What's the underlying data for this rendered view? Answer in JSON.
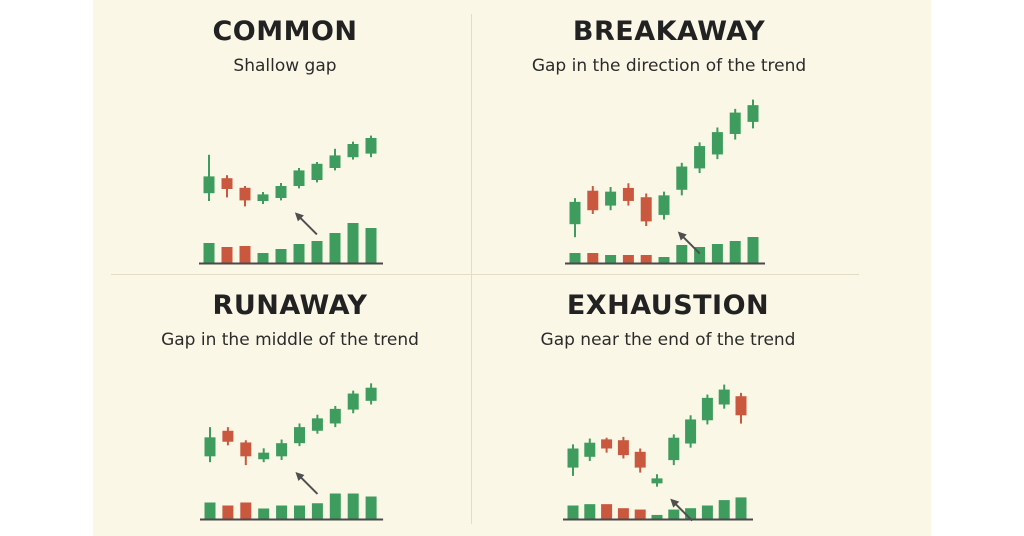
{
  "colors": {
    "up": "#3e9c5e",
    "down": "#c9583f",
    "baseline": "#4a4a4a",
    "arrow": "#4f4f4f",
    "background": "#fbf7e6"
  },
  "chart_data": [
    {
      "type": "candlestick",
      "title": "COMMON",
      "subtitle": "Shallow gap",
      "candles": [
        {
          "o": 176,
          "c": 148,
          "h": 212,
          "l": 135,
          "dir": "up"
        },
        {
          "o": 173,
          "c": 155,
          "h": 178,
          "l": 141,
          "dir": "down"
        },
        {
          "o": 157,
          "c": 136,
          "h": 160,
          "l": 126,
          "dir": "down"
        },
        {
          "o": 135,
          "c": 146,
          "h": 150,
          "l": 130,
          "dir": "up"
        },
        {
          "o": 140,
          "c": 160,
          "h": 165,
          "l": 136,
          "dir": "up"
        },
        {
          "o": 160,
          "c": 186,
          "h": 190,
          "l": 156,
          "dir": "up"
        },
        {
          "o": 170,
          "c": 197,
          "h": 200,
          "l": 166,
          "dir": "up"
        },
        {
          "o": 190,
          "c": 211,
          "h": 222,
          "l": 186,
          "dir": "up"
        },
        {
          "o": 208,
          "c": 230,
          "h": 234,
          "l": 204,
          "dir": "up"
        },
        {
          "o": 214,
          "c": 240,
          "h": 244,
          "l": 208,
          "dir": "up"
        }
      ],
      "volume": [
        {
          "v": 20,
          "dir": "up"
        },
        {
          "v": 16,
          "dir": "down"
        },
        {
          "v": 17,
          "dir": "down"
        },
        {
          "v": 10,
          "dir": "up"
        },
        {
          "v": 14,
          "dir": "up"
        },
        {
          "v": 19,
          "dir": "up"
        },
        {
          "v": 22,
          "dir": "up"
        },
        {
          "v": 30,
          "dir": "up"
        },
        {
          "v": 40,
          "dir": "up"
        },
        {
          "v": 35,
          "dir": "up"
        }
      ],
      "arrow_after_candle": 4
    },
    {
      "type": "candlestick",
      "title": "BREAKAWAY",
      "subtitle": "Gap in the direction of the trend",
      "candles": [
        {
          "o": 112,
          "c": 136,
          "h": 140,
          "l": 98,
          "dir": "up"
        },
        {
          "o": 148,
          "c": 127,
          "h": 153,
          "l": 123,
          "dir": "down"
        },
        {
          "o": 132,
          "c": 147,
          "h": 152,
          "l": 127,
          "dir": "up"
        },
        {
          "o": 151,
          "c": 137,
          "h": 156,
          "l": 132,
          "dir": "down"
        },
        {
          "o": 141,
          "c": 115,
          "h": 145,
          "l": 110,
          "dir": "down"
        },
        {
          "o": 122,
          "c": 143,
          "h": 147,
          "l": 117,
          "dir": "up"
        },
        {
          "o": 149,
          "c": 174,
          "h": 178,
          "l": 143,
          "dir": "up"
        },
        {
          "o": 172,
          "c": 196,
          "h": 200,
          "l": 167,
          "dir": "up"
        },
        {
          "o": 187,
          "c": 211,
          "h": 216,
          "l": 182,
          "dir": "up"
        },
        {
          "o": 209,
          "c": 232,
          "h": 236,
          "l": 203,
          "dir": "up"
        },
        {
          "o": 222,
          "c": 240,
          "h": 246,
          "l": 215,
          "dir": "up"
        }
      ],
      "volume": [
        {
          "v": 10,
          "dir": "up"
        },
        {
          "v": 10,
          "dir": "down"
        },
        {
          "v": 8,
          "dir": "up"
        },
        {
          "v": 8,
          "dir": "down"
        },
        {
          "v": 8,
          "dir": "down"
        },
        {
          "v": 6,
          "dir": "up"
        },
        {
          "v": 18,
          "dir": "up"
        },
        {
          "v": 16,
          "dir": "up"
        },
        {
          "v": 19,
          "dir": "up"
        },
        {
          "v": 22,
          "dir": "up"
        },
        {
          "v": 26,
          "dir": "up"
        }
      ],
      "arrow_after_candle": 5
    },
    {
      "type": "candlestick",
      "title": "RUNAWAY",
      "subtitle": "Gap in the middle of the trend",
      "candles": [
        {
          "o": 162,
          "c": 136,
          "h": 176,
          "l": 128,
          "dir": "up"
        },
        {
          "o": 171,
          "c": 156,
          "h": 176,
          "l": 151,
          "dir": "down"
        },
        {
          "o": 155,
          "c": 136,
          "h": 158,
          "l": 124,
          "dir": "down"
        },
        {
          "o": 141,
          "c": 132,
          "h": 147,
          "l": 128,
          "dir": "up"
        },
        {
          "o": 136,
          "c": 154,
          "h": 159,
          "l": 131,
          "dir": "up"
        },
        {
          "o": 154,
          "c": 176,
          "h": 181,
          "l": 150,
          "dir": "up"
        },
        {
          "o": 171,
          "c": 188,
          "h": 193,
          "l": 167,
          "dir": "up"
        },
        {
          "o": 181,
          "c": 201,
          "h": 205,
          "l": 176,
          "dir": "up"
        },
        {
          "o": 200,
          "c": 222,
          "h": 226,
          "l": 195,
          "dir": "up"
        },
        {
          "o": 212,
          "c": 230,
          "h": 236,
          "l": 207,
          "dir": "up"
        }
      ],
      "volume": [
        {
          "v": 22,
          "dir": "up"
        },
        {
          "v": 18,
          "dir": "down"
        },
        {
          "v": 22,
          "dir": "down"
        },
        {
          "v": 14,
          "dir": "up"
        },
        {
          "v": 18,
          "dir": "up"
        },
        {
          "v": 18,
          "dir": "up"
        },
        {
          "v": 21,
          "dir": "up"
        },
        {
          "v": 34,
          "dir": "up"
        },
        {
          "v": 34,
          "dir": "up"
        },
        {
          "v": 30,
          "dir": "up"
        }
      ],
      "arrow_after_candle": 4
    },
    {
      "type": "candlestick",
      "title": "EXHAUSTION",
      "subtitle": "Gap near the end of the trend",
      "candles": [
        {
          "o": 117,
          "c": 140,
          "h": 145,
          "l": 107,
          "dir": "up"
        },
        {
          "o": 130,
          "c": 147,
          "h": 152,
          "l": 125,
          "dir": "up"
        },
        {
          "o": 151,
          "c": 140,
          "h": 153,
          "l": 135,
          "dir": "down"
        },
        {
          "o": 150,
          "c": 132,
          "h": 154,
          "l": 128,
          "dir": "down"
        },
        {
          "o": 136,
          "c": 117,
          "h": 140,
          "l": 111,
          "dir": "down"
        },
        {
          "o": 104,
          "c": 98,
          "h": 109,
          "l": 94,
          "dir": "up"
        },
        {
          "o": 126,
          "c": 153,
          "h": 157,
          "l": 120,
          "dir": "up"
        },
        {
          "o": 146,
          "c": 175,
          "h": 180,
          "l": 141,
          "dir": "up"
        },
        {
          "o": 174,
          "c": 201,
          "h": 205,
          "l": 169,
          "dir": "up"
        },
        {
          "o": 193,
          "c": 211,
          "h": 217,
          "l": 188,
          "dir": "up"
        },
        {
          "o": 203,
          "c": 180,
          "h": 207,
          "l": 170,
          "dir": "down"
        }
      ],
      "volume": [
        {
          "v": 10,
          "dir": "up"
        },
        {
          "v": 11,
          "dir": "up"
        },
        {
          "v": 11,
          "dir": "down"
        },
        {
          "v": 8,
          "dir": "down"
        },
        {
          "v": 7,
          "dir": "down"
        },
        {
          "v": 3,
          "dir": "up"
        },
        {
          "v": 7,
          "dir": "up"
        },
        {
          "v": 8,
          "dir": "up"
        },
        {
          "v": 10,
          "dir": "up"
        },
        {
          "v": 14,
          "dir": "up"
        },
        {
          "v": 16,
          "dir": "up"
        }
      ],
      "arrow_after_candle": 5
    }
  ]
}
